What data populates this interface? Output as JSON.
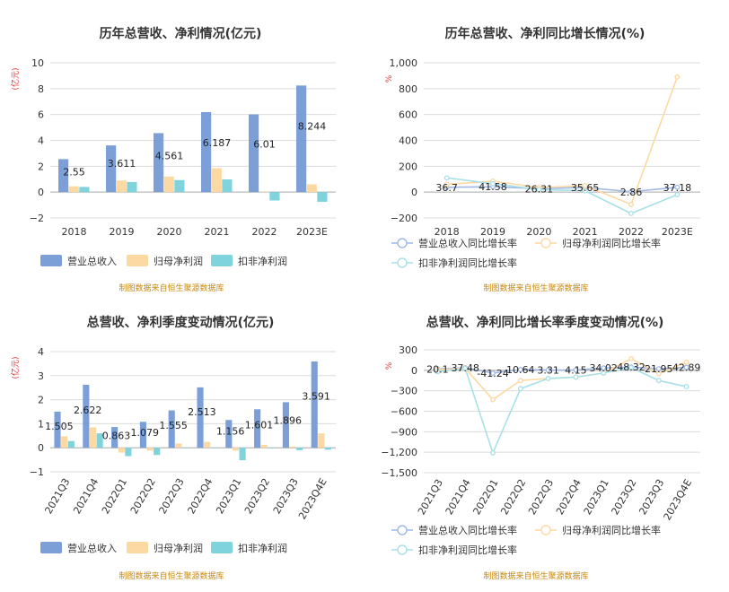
{
  "source_note": "制图数据来自恒生聚源数据库",
  "chart_data": [
    {
      "id": "p1",
      "type": "bar",
      "title": "历年总营收、净利情况(亿元)",
      "unit_label": "(亿元)",
      "categories": [
        "2018",
        "2019",
        "2020",
        "2021",
        "2022",
        "2023E"
      ],
      "series": [
        {
          "name": "营业总收入",
          "color": "#7c9fd8",
          "values": [
            2.55,
            3.611,
            4.561,
            6.187,
            6.01,
            8.244
          ],
          "labels": [
            "2.55",
            "3.611",
            "4.561",
            "6.187",
            "6.01",
            "8.244"
          ]
        },
        {
          "name": "归母净利润",
          "color": "#fcd9a2",
          "values": [
            0.45,
            0.9,
            1.2,
            1.85,
            0.03,
            0.6
          ]
        },
        {
          "name": "扣非净利润",
          "color": "#7fd3dc",
          "values": [
            0.4,
            0.78,
            0.93,
            0.98,
            -0.65,
            -0.75
          ]
        }
      ],
      "ylim": [
        -2,
        10
      ],
      "yticks": [
        -2,
        0,
        2,
        4,
        6,
        8,
        10
      ],
      "ytick_labels": [
        "−2",
        "0",
        "2",
        "4",
        "6",
        "8",
        "10"
      ],
      "grid": true,
      "legend_position": "bottom"
    },
    {
      "id": "p2",
      "type": "line",
      "title": "历年总营收、净利同比增长情况(%)",
      "unit_label": "%",
      "categories": [
        "2018",
        "2019",
        "2020",
        "2021",
        "2022",
        "2023E"
      ],
      "series": [
        {
          "name": "营业总收入同比增长率",
          "color": "#9fb8e6",
          "values": [
            36.7,
            41.58,
            26.31,
            35.65,
            2.86,
            37.18
          ],
          "labels": [
            "36.7",
            "41.58",
            "26.31",
            "35.65",
            "2.86",
            "37.18"
          ]
        },
        {
          "name": "归母净利润同比增长率",
          "color": "#fcd9a2",
          "values": [
            60,
            85,
            35,
            50,
            -95,
            890
          ]
        },
        {
          "name": "扣非净利润同比增长率",
          "color": "#a8e0e8",
          "values": [
            110,
            65,
            20,
            10,
            -165,
            -20
          ]
        }
      ],
      "ylim": [
        -200,
        1000
      ],
      "yticks": [
        -200,
        0,
        200,
        400,
        600,
        800,
        1000
      ],
      "ytick_labels": [
        "−200",
        "0",
        "200",
        "400",
        "600",
        "800",
        "1,000"
      ],
      "grid": true,
      "legend_position": "bottom"
    },
    {
      "id": "p3",
      "type": "bar",
      "title": "总营收、净利季度变动情况(亿元)",
      "unit_label": "(亿元)",
      "categories": [
        "2021Q3",
        "2021Q4",
        "2022Q1",
        "2022Q2",
        "2022Q3",
        "2022Q4",
        "2023Q1",
        "2023Q2",
        "2023Q3",
        "2023Q4E"
      ],
      "series": [
        {
          "name": "营业总收入",
          "color": "#7c9fd8",
          "values": [
            1.505,
            2.622,
            0.863,
            1.079,
            1.555,
            2.513,
            1.156,
            1.601,
            1.896,
            3.591
          ],
          "labels": [
            "1.505",
            "2.622",
            "0.863",
            "1.079",
            "1.555",
            "2.513",
            "1.156",
            "1.601",
            "1.896",
            "3.591"
          ]
        },
        {
          "name": "归母净利润",
          "color": "#fcd9a2",
          "values": [
            0.48,
            0.85,
            -0.2,
            -0.12,
            0.18,
            0.25,
            -0.12,
            0.12,
            0.05,
            0.6
          ]
        },
        {
          "name": "扣非净利润",
          "color": "#7fd3dc",
          "values": [
            0.28,
            0.6,
            -0.35,
            -0.3,
            0.0,
            0.0,
            -0.52,
            -0.02,
            -0.1,
            -0.08
          ]
        }
      ],
      "ylim": [
        -1,
        4
      ],
      "yticks": [
        -1,
        0,
        1,
        2,
        3,
        4
      ],
      "ytick_labels": [
        "−1",
        "0",
        "1",
        "2",
        "3",
        "4"
      ],
      "grid": true,
      "legend_position": "bottom"
    },
    {
      "id": "p4",
      "type": "line",
      "title": "总营收、净利同比增长率季度变动情况(%)",
      "unit_label": "%",
      "categories": [
        "2021Q3",
        "2021Q4",
        "2022Q1",
        "2022Q2",
        "2022Q3",
        "2022Q4",
        "2023Q1",
        "2023Q2",
        "2023Q3",
        "2023Q4E"
      ],
      "series": [
        {
          "name": "营业总收入同比增长率",
          "color": "#9fb8e6",
          "values": [
            20.1,
            37.48,
            -41.24,
            10.64,
            3.31,
            4.15,
            34.02,
            48.32,
            21.95,
            42.89
          ],
          "labels": [
            "20.1",
            "37.48",
            "-41.24",
            "10.64",
            "3.31",
            "4.15",
            "34.02",
            "48.32",
            "21.95",
            "42.89"
          ]
        },
        {
          "name": "归母净利润同比增长率",
          "color": "#fcd9a2",
          "values": [
            10,
            30,
            -430,
            -150,
            -120,
            -100,
            -40,
            170,
            -50,
            120
          ]
        },
        {
          "name": "扣非净利润同比增长率",
          "color": "#a8e0e8",
          "values": [
            -20,
            25,
            -1210,
            -270,
            -120,
            -100,
            -40,
            40,
            -150,
            -240
          ]
        }
      ],
      "ylim": [
        -1500,
        300
      ],
      "yticks": [
        -1500,
        -1200,
        -900,
        -600,
        -300,
        0,
        300
      ],
      "ytick_labels": [
        "−1,500",
        "−1,200",
        "−900",
        "−600",
        "−300",
        "0",
        "300"
      ],
      "grid": true,
      "legend_position": "bottom"
    }
  ]
}
